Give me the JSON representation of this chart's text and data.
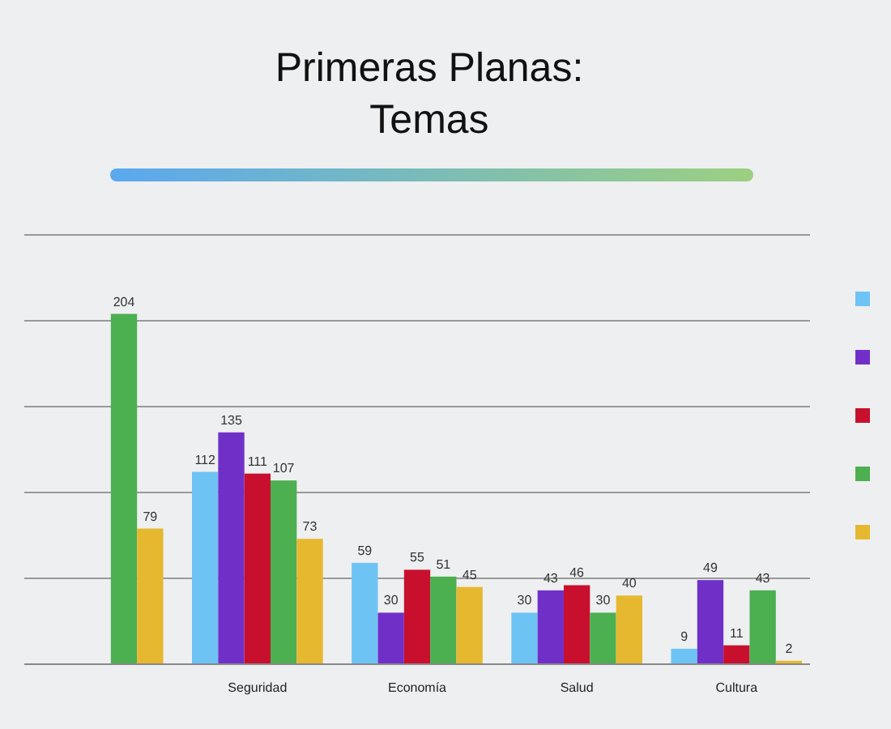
{
  "chart_data": {
    "type": "bar",
    "title": "Primeras Planas:\nTemas",
    "categories": [
      null,
      "Seguridad",
      "Economía",
      "Salud",
      "Cultura"
    ],
    "series": [
      {
        "color": "#6ec3f5",
        "values": [
          null,
          112,
          59,
          30,
          9
        ]
      },
      {
        "color": "#7030c8",
        "values": [
          null,
          135,
          30,
          43,
          49
        ]
      },
      {
        "color": "#c8102e",
        "values": [
          null,
          111,
          55,
          46,
          11
        ]
      },
      {
        "color": "#4caf50",
        "values": [
          204,
          107,
          51,
          30,
          43
        ]
      },
      {
        "color": "#e6b830",
        "values": [
          79,
          73,
          45,
          40,
          2
        ]
      }
    ],
    "ylim": [
      0,
      250
    ],
    "yticks": [
      {
        "value": 0,
        "label": null
      },
      {
        "value": 50,
        "label": null
      },
      {
        "value": 100,
        "label": null
      },
      {
        "value": 150,
        "label": null
      },
      {
        "value": 200,
        "label": null
      },
      {
        "value": 250,
        "label": null
      }
    ],
    "tick_labels": "x",
    "grid": "y",
    "data_labels": true
  }
}
